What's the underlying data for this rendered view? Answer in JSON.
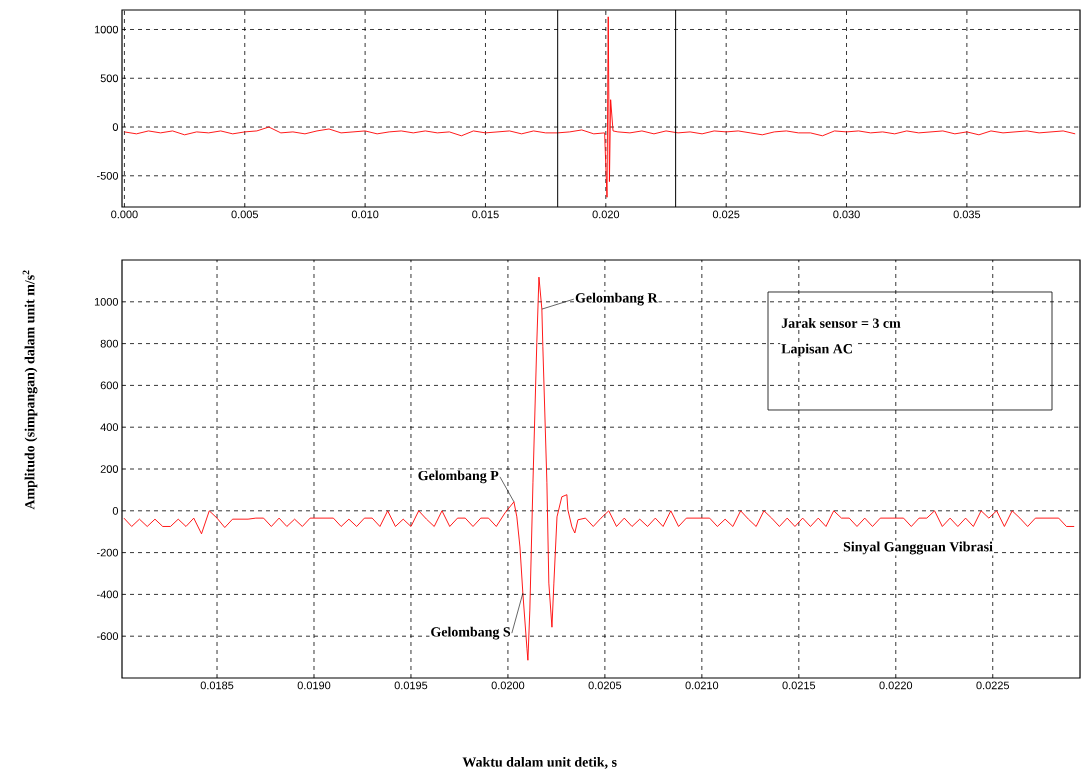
{
  "chart_data": [
    {
      "type": "line",
      "grid": true,
      "xlim": [
        -0.0001,
        0.0397
      ],
      "ylim": [
        -820,
        1200
      ],
      "xticks": [
        {
          "value": 0,
          "label": "0.000"
        },
        0.005,
        {
          "value": 0.01,
          "label": "0.010"
        },
        0.015,
        {
          "value": 0.02,
          "label": "0.020"
        },
        0.025,
        {
          "value": 0.03,
          "label": "0.030"
        },
        0.035
      ],
      "yticks": [
        -500,
        0,
        500,
        1000
      ],
      "ref_lines": [
        {
          "axis": "x",
          "value": 0.018,
          "color": "#000000"
        },
        {
          "axis": "x",
          "value": 0.0229,
          "color": "#000000"
        }
      ],
      "series": [
        {
          "color": "#ff0000",
          "x": [
            0,
            0.0005,
            0.001,
            0.0015,
            0.002,
            0.0025,
            0.003,
            0.0035,
            0.004,
            0.0045,
            0.005,
            0.0055,
            0.006,
            0.0065,
            0.007,
            0.0075,
            0.008,
            0.0085,
            0.009,
            0.0095,
            0.01,
            0.0105,
            0.011,
            0.0115,
            0.012,
            0.0125,
            0.013,
            0.0135,
            0.014,
            0.0145,
            0.015,
            0.0155,
            0.016,
            0.0165,
            0.017,
            0.0175,
            0.018,
            0.0185,
            0.019,
            0.0195,
            0.01995,
            0.02,
            0.02005,
            0.0201,
            0.02015,
            0.0202,
            0.0203,
            0.0205,
            0.021,
            0.0215,
            0.022,
            0.0225,
            0.023,
            0.0235,
            0.024,
            0.0245,
            0.025,
            0.0255,
            0.026,
            0.0265,
            0.027,
            0.0275,
            0.028,
            0.0285,
            0.029,
            0.0295,
            0.03,
            0.0305,
            0.031,
            0.0315,
            0.032,
            0.0325,
            0.033,
            0.0335,
            0.034,
            0.0345,
            0.035,
            0.0355,
            0.036,
            0.0365,
            0.037,
            0.0375,
            0.038,
            0.0385,
            0.039,
            0.0395
          ],
          "values": [
            -50,
            -70,
            -40,
            -60,
            -40,
            -80,
            -50,
            -60,
            -40,
            -70,
            -50,
            -40,
            0,
            -60,
            -50,
            -70,
            -40,
            -20,
            -60,
            -50,
            -40,
            -70,
            -50,
            -40,
            -60,
            -40,
            -60,
            -50,
            -90,
            -40,
            -60,
            -50,
            -40,
            -70,
            -40,
            -60,
            -60,
            -50,
            -30,
            -70,
            -60,
            -400,
            -720,
            1130,
            -560,
            280,
            -40,
            -50,
            -60,
            -40,
            -70,
            -40,
            -60,
            -50,
            -70,
            -40,
            -50,
            -40,
            -60,
            -80,
            -50,
            -40,
            -60,
            -60,
            -90,
            -40,
            -50,
            -40,
            -60,
            -50,
            -70,
            -40,
            -60,
            -50,
            -40,
            -70,
            -50,
            -80,
            -40,
            -60,
            -50,
            -40,
            -60,
            -50,
            -40,
            -70
          ]
        }
      ]
    },
    {
      "type": "line",
      "grid": true,
      "xlabel": "Waktu dalam unit detik, s",
      "ylabel": "Amplitudo (simpangan) dalam unit m/s$^{2}$",
      "xlim": [
        0.01801,
        0.02295
      ],
      "ylim": [
        -800,
        1200
      ],
      "xticks": [
        0.0185,
        {
          "value": 0.019,
          "label": "0.0190"
        },
        0.0195,
        {
          "value": 0.02,
          "label": "0.0200"
        },
        0.0205,
        {
          "value": 0.021,
          "label": "0.0210"
        },
        0.0215,
        {
          "value": 0.022,
          "label": "0.0220"
        },
        0.0225
      ],
      "yticks": [
        -600,
        -400,
        -200,
        0,
        200,
        400,
        600,
        800,
        1000
      ],
      "annotations": [
        {
          "text": "Gelombang P",
          "x": 0.020031,
          "y": 43
        },
        {
          "text": "Gelombang S",
          "x": 0.020077,
          "y": -394
        },
        {
          "text": "Gelombang R",
          "x": 0.020175,
          "y": 965
        },
        "Jarak sensor = 3 cm",
        "Lapisan AC",
        "Sinyal Gangguan Vibrasi"
      ],
      "series": [
        {
          "color": "#ff0000",
          "x": [
            0.01802,
            0.01806,
            0.0181,
            0.01814,
            0.01818,
            0.01822,
            0.01826,
            0.0183,
            0.01834,
            0.01838,
            0.01842,
            0.01846,
            0.0185,
            0.01854,
            0.01858,
            0.01862,
            0.01866,
            0.0187,
            0.01874,
            0.01878,
            0.01882,
            0.01886,
            0.0189,
            0.01894,
            0.01898,
            0.01902,
            0.01906,
            0.0191,
            0.01914,
            0.01918,
            0.01922,
            0.01926,
            0.0193,
            0.01934,
            0.01938,
            0.01942,
            0.01946,
            0.0195,
            0.01954,
            0.01958,
            0.01962,
            0.01966,
            0.0197,
            0.01974,
            0.01978,
            0.01982,
            0.01986,
            0.0199,
            0.01994,
            0.019985,
            0.020031,
            0.020046,
            0.020062,
            0.020077,
            0.020098,
            0.020103,
            0.020113,
            0.020129,
            0.020149,
            0.02016,
            0.020175,
            0.02018,
            0.020201,
            0.020211,
            0.020227,
            0.020237,
            0.020253,
            0.020278,
            0.020304,
            0.020309,
            0.02033,
            0.020345,
            0.020361,
            0.0204,
            0.02044,
            0.02048,
            0.02052,
            0.02056,
            0.0206,
            0.02064,
            0.02068,
            0.02072,
            0.02076,
            0.0208,
            0.02084,
            0.02088,
            0.02092,
            0.02096,
            0.021,
            0.02104,
            0.02108,
            0.02112,
            0.02116,
            0.0212,
            0.02124,
            0.02128,
            0.02132,
            0.02136,
            0.0214,
            0.02144,
            0.02148,
            0.02152,
            0.02156,
            0.0216,
            0.02164,
            0.02168,
            0.02172,
            0.02176,
            0.0218,
            0.02184,
            0.02188,
            0.02192,
            0.02196,
            0.022,
            0.02204,
            0.02208,
            0.02212,
            0.02216,
            0.0222,
            0.02224,
            0.02228,
            0.02232,
            0.02236,
            0.0224,
            0.02244,
            0.02248,
            0.02252,
            0.02256,
            0.0226,
            0.02264,
            0.02268,
            0.02272,
            0.02276,
            0.0228,
            0.02284,
            0.02288,
            0.02292
          ],
          "values": [
            -35,
            -75,
            -40,
            -75,
            -40,
            -75,
            -75,
            -40,
            -75,
            -35,
            -110,
            0,
            -35,
            -80,
            -40,
            -40,
            -40,
            -35,
            -35,
            -75,
            -35,
            -75,
            -40,
            -75,
            -35,
            -35,
            -35,
            -35,
            -75,
            -40,
            -75,
            -35,
            -35,
            -75,
            0,
            -75,
            -40,
            -75,
            0,
            -40,
            -75,
            0,
            -75,
            -35,
            -35,
            -75,
            -35,
            -35,
            -75,
            -10,
            43,
            -29,
            -173,
            -394,
            -658,
            -715,
            -475,
            134,
            806,
            1118,
            965,
            787,
            134,
            -346,
            -557,
            -346,
            -29,
            67,
            77,
            5,
            -77,
            -106,
            -43,
            -35,
            -75,
            -35,
            0,
            -75,
            -35,
            -75,
            -40,
            -75,
            -35,
            -75,
            0,
            -75,
            -35,
            -35,
            -35,
            -35,
            -75,
            -40,
            -75,
            0,
            -40,
            -75,
            0,
            -35,
            -75,
            -35,
            -75,
            -35,
            -75,
            -35,
            -75,
            0,
            -35,
            -35,
            -75,
            -35,
            -75,
            -35,
            -35,
            -35,
            -35,
            -75,
            -35,
            -35,
            0,
            -75,
            -35,
            -75,
            -35,
            -75,
            0,
            -35,
            0,
            -75,
            0,
            -35,
            -75,
            -35,
            -35,
            -35,
            -35,
            -75,
            -75
          ]
        }
      ]
    }
  ]
}
